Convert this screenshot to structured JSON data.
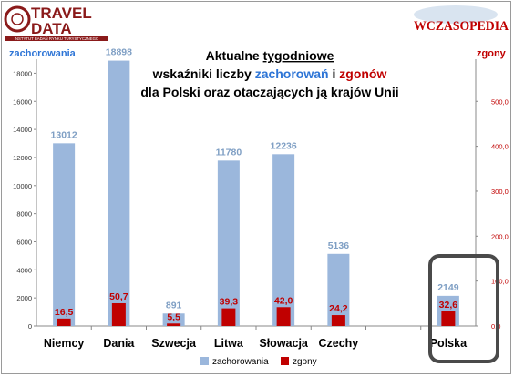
{
  "logos": {
    "left_line1": "TRAVEL",
    "left_line2": "DATA",
    "left_tagline": "INSTYTUT BADAŃ RYNKU TURYSTYCZNEGO",
    "right_text": "WCZASOPEDIA"
  },
  "title": {
    "line1_a": "Aktualne ",
    "line1_b": "tygodniowe",
    "line2_a": "wskaźniki liczby ",
    "line2_b": "zachorowań",
    "line2_c": " i ",
    "line2_d": "zgonów",
    "line3": "dla Polski oraz otaczających ją krajów Unii"
  },
  "colors": {
    "cases": "#9bb7dc",
    "deaths": "#c00000",
    "cases_label": "#7f9fc4",
    "deaths_label": "#c00000",
    "title_blue": "#2e75d6",
    "title_red": "#c00000"
  },
  "chart_data": {
    "type": "bar",
    "categories": [
      "Niemcy",
      "Dania",
      "Szwecja",
      "Litwa",
      "Słowacja",
      "Czechy",
      "Polska"
    ],
    "category_slots": [
      0,
      1,
      2,
      3,
      4,
      5,
      7
    ],
    "slot_count": 8,
    "series": [
      {
        "name": "zachorowania",
        "axis": "left",
        "values": [
          13012,
          18898,
          891,
          11780,
          12236,
          5136,
          2149
        ],
        "labels": [
          "13012",
          "18898",
          "891",
          "11780",
          "12236",
          "5136",
          "2149"
        ]
      },
      {
        "name": "zgony",
        "axis": "right",
        "values": [
          16.5,
          50.7,
          5.5,
          39.3,
          42.0,
          24.2,
          32.6
        ],
        "labels": [
          "16,5",
          "50,7",
          "5,5",
          "39,3",
          "42,0",
          "24,2",
          "32,6"
        ]
      }
    ],
    "ylabel": "zachorowania",
    "y2label": "zgony",
    "ylim": [
      0,
      19000
    ],
    "yticks": [
      0,
      2000,
      4000,
      6000,
      8000,
      10000,
      12000,
      14000,
      16000,
      18000
    ],
    "y2lim": [
      0,
      593.75
    ],
    "y2ticks": [
      "0,0",
      "100,0",
      "200,0",
      "300,0",
      "400,0",
      "500,0"
    ],
    "y2tick_values": [
      0,
      100,
      200,
      300,
      400,
      500
    ],
    "grid": false,
    "legend_position": "bottom",
    "highlight": "Polska"
  }
}
